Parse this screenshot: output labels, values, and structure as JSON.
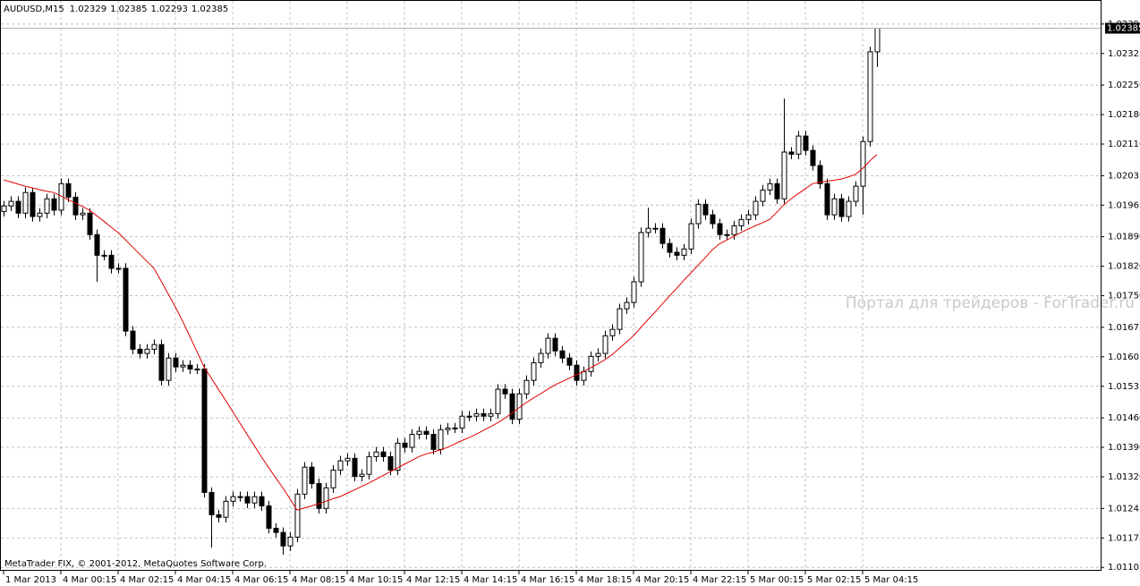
{
  "chart_data": {
    "type": "candlestick",
    "title": "AUDUSD,M15",
    "watermark": "Портал для трейдеров - ForTrader.ru",
    "footer": "MetaTrader FIX, © 2001-2012, MetaQuotes Software Corp.",
    "grid": true,
    "up_color": "#ffffff",
    "down_color": "#000000",
    "categories": [
      "1 Mar 2013",
      null,
      null,
      null,
      null,
      null,
      null,
      null,
      "4 Mar 00:15",
      null,
      null,
      null,
      null,
      null,
      null,
      null,
      "4 Mar 02:15",
      null,
      null,
      null,
      null,
      null,
      null,
      null,
      "4 Mar 04:15",
      null,
      null,
      null,
      null,
      null,
      null,
      null,
      "4 Mar 06:15",
      null,
      null,
      null,
      null,
      null,
      null,
      null,
      "4 Mar 08:15",
      null,
      null,
      null,
      null,
      null,
      null,
      null,
      "4 Mar 10:15",
      null,
      null,
      null,
      null,
      null,
      null,
      null,
      "4 Mar 12:15",
      null,
      null,
      null,
      null,
      null,
      null,
      null,
      "4 Mar 14:15",
      null,
      null,
      null,
      null,
      null,
      null,
      null,
      "4 Mar 16:15",
      null,
      null,
      null,
      null,
      null,
      null,
      null,
      "4 Mar 18:15",
      null,
      null,
      null,
      null,
      null,
      null,
      null,
      "4 Mar 20:15",
      null,
      null,
      null,
      null,
      null,
      null,
      null,
      "4 Mar 22:15",
      null,
      null,
      null,
      null,
      null,
      null,
      null,
      "5 Mar 00:15",
      null,
      null,
      null,
      null,
      null,
      null,
      null,
      "5 Mar 02:15",
      null,
      null,
      null,
      null,
      null,
      null,
      null,
      "5 Mar 04:15",
      null,
      null
    ],
    "open": [
      1.0195,
      1.01963,
      1.01974,
      1.01946,
      1.01995,
      1.01938,
      1.01946,
      1.0198,
      1.01953,
      1.02016,
      1.01984,
      1.01942,
      1.01946,
      1.01895,
      1.01846,
      1.01846,
      1.01815,
      1.01815,
      1.01666,
      1.01623,
      1.01613,
      1.01623,
      1.01634,
      1.01549,
      1.01602,
      1.01581,
      1.01585,
      1.01576,
      1.01576,
      1.01283,
      1.0123,
      1.01224,
      1.01262,
      1.01273,
      1.01273,
      1.01258,
      1.01273,
      1.01251,
      1.01198,
      1.01188,
      1.01156,
      1.01177,
      1.01279,
      1.01343,
      1.01304,
      1.01245,
      1.01294,
      1.01336,
      1.01358,
      1.01364,
      1.01321,
      1.01326,
      1.01368,
      1.01379,
      1.01368,
      1.01336,
      1.014,
      1.0139,
      1.01421,
      1.01428,
      1.01421,
      1.01385,
      1.01432,
      1.01436,
      1.01436,
      1.01464,
      1.01464,
      1.0147,
      1.01464,
      1.0147,
      1.01528,
      1.01517,
      1.01457,
      1.01517,
      1.01549,
      1.01591,
      1.01613,
      1.01649,
      1.01619,
      1.01602,
      1.01585,
      1.01549,
      1.0157,
      1.01606,
      1.01613,
      1.01655,
      1.0167,
      1.01719,
      1.01734,
      1.01783,
      1.019,
      1.0191,
      1.0191,
      1.01874,
      1.01853,
      1.01846,
      1.01861,
      1.01921,
      1.01967,
      1.01942,
      1.01921,
      1.01895,
      1.01895,
      1.01916,
      1.01931,
      1.01942,
      1.01974,
      1.02001,
      1.02016,
      1.0198,
      1.02091,
      1.02086,
      1.02129,
      1.02095,
      1.02059,
      1.02016,
      1.01942,
      1.0198,
      1.01938,
      1.01974,
      1.0201,
      1.02116,
      1.02329
    ],
    "high": [
      1.01975,
      1.01986,
      1.01986,
      1.02007,
      1.02007,
      1.01958,
      1.01992,
      1.01992,
      1.02028,
      1.02028,
      1.01996,
      1.01958,
      1.01958,
      1.01907,
      1.01858,
      1.01858,
      1.01827,
      1.01827,
      1.01678,
      1.01635,
      1.01635,
      1.01646,
      1.01646,
      1.01614,
      1.01614,
      1.01597,
      1.01597,
      1.01588,
      1.01588,
      1.01295,
      1.01242,
      1.01274,
      1.01285,
      1.01285,
      1.01285,
      1.01285,
      1.01285,
      1.01263,
      1.0121,
      1.012,
      1.01189,
      1.01291,
      1.01355,
      1.01355,
      1.01316,
      1.01306,
      1.01348,
      1.0137,
      1.01376,
      1.01376,
      1.01338,
      1.0138,
      1.01391,
      1.01391,
      1.0138,
      1.01412,
      1.01412,
      1.01433,
      1.0144,
      1.0144,
      1.01433,
      1.01444,
      1.01448,
      1.01448,
      1.01476,
      1.01476,
      1.01482,
      1.01482,
      1.01482,
      1.0154,
      1.0154,
      1.01529,
      1.01529,
      1.01561,
      1.01603,
      1.01625,
      1.01661,
      1.01661,
      1.01631,
      1.01614,
      1.01597,
      1.01582,
      1.01618,
      1.01625,
      1.01667,
      1.01682,
      1.01731,
      1.01746,
      1.01795,
      1.01912,
      1.01959,
      1.01922,
      1.01922,
      1.01886,
      1.01865,
      1.01873,
      1.01933,
      1.01979,
      1.01979,
      1.01954,
      1.01933,
      1.01907,
      1.01928,
      1.01943,
      1.01954,
      1.01986,
      1.02013,
      1.02028,
      1.02028,
      1.02218,
      1.02103,
      1.02141,
      1.02141,
      1.02107,
      1.02071,
      1.02028,
      1.01992,
      1.01992,
      1.01986,
      1.02022,
      1.02128,
      1.02341,
      1.02385
    ],
    "low": [
      1.01938,
      1.01951,
      1.01934,
      1.01934,
      1.01926,
      1.01926,
      1.01934,
      1.01941,
      1.01941,
      1.01972,
      1.0193,
      1.0193,
      1.01883,
      1.01783,
      1.01834,
      1.01803,
      1.01803,
      1.01654,
      1.01611,
      1.01601,
      1.01601,
      1.01611,
      1.01537,
      1.01537,
      1.01569,
      1.01569,
      1.01564,
      1.01564,
      1.01271,
      1.01152,
      1.01212,
      1.01212,
      1.0125,
      1.01261,
      1.01246,
      1.01246,
      1.01239,
      1.01186,
      1.01176,
      1.01135,
      1.01144,
      1.01165,
      1.01267,
      1.01292,
      1.01233,
      1.01233,
      1.01282,
      1.01324,
      1.01346,
      1.01309,
      1.01309,
      1.01314,
      1.01356,
      1.01356,
      1.01324,
      1.01324,
      1.01378,
      1.01378,
      1.01409,
      1.01409,
      1.01373,
      1.01373,
      1.0142,
      1.01424,
      1.01424,
      1.01452,
      1.01452,
      1.01452,
      1.01452,
      1.01458,
      1.01505,
      1.01445,
      1.01445,
      1.01505,
      1.01537,
      1.01579,
      1.01601,
      1.01607,
      1.0159,
      1.01573,
      1.01537,
      1.01537,
      1.01558,
      1.01594,
      1.01601,
      1.01643,
      1.01658,
      1.01707,
      1.01722,
      1.01771,
      1.01888,
      1.01898,
      1.01862,
      1.01841,
      1.01834,
      1.01834,
      1.01849,
      1.01909,
      1.0193,
      1.01909,
      1.01883,
      1.01883,
      1.01883,
      1.01904,
      1.01919,
      1.0193,
      1.01962,
      1.01989,
      1.01968,
      1.01968,
      1.02074,
      1.02074,
      1.02083,
      1.02047,
      1.02004,
      1.0193,
      1.0193,
      1.01926,
      1.01926,
      1.01962,
      1.01942,
      1.02104,
      1.02293
    ],
    "close": [
      1.01963,
      1.01974,
      1.01946,
      1.01995,
      1.01938,
      1.01946,
      1.0198,
      1.01953,
      1.02016,
      1.01984,
      1.01942,
      1.01946,
      1.01895,
      1.01846,
      1.01846,
      1.01815,
      1.01815,
      1.01666,
      1.01623,
      1.01613,
      1.01623,
      1.01634,
      1.01549,
      1.01602,
      1.01581,
      1.01585,
      1.01576,
      1.01576,
      1.01283,
      1.0123,
      1.01224,
      1.01262,
      1.01273,
      1.01273,
      1.01258,
      1.01273,
      1.01251,
      1.01198,
      1.01188,
      1.01156,
      1.01177,
      1.01279,
      1.01343,
      1.01304,
      1.01245,
      1.01294,
      1.01336,
      1.01358,
      1.01364,
      1.01321,
      1.01326,
      1.01368,
      1.01379,
      1.01368,
      1.01336,
      1.014,
      1.0139,
      1.01421,
      1.01428,
      1.01421,
      1.01385,
      1.01432,
      1.01436,
      1.01436,
      1.01464,
      1.01464,
      1.0147,
      1.01464,
      1.0147,
      1.01528,
      1.01517,
      1.01457,
      1.01517,
      1.01549,
      1.01591,
      1.01613,
      1.01649,
      1.01619,
      1.01602,
      1.01585,
      1.01549,
      1.0157,
      1.01606,
      1.01613,
      1.01655,
      1.0167,
      1.01719,
      1.01734,
      1.01783,
      1.019,
      1.0191,
      1.0191,
      1.01874,
      1.01853,
      1.01846,
      1.01861,
      1.01921,
      1.01967,
      1.01942,
      1.01921,
      1.01895,
      1.01895,
      1.01916,
      1.01931,
      1.01942,
      1.01974,
      1.02001,
      1.02016,
      1.0198,
      1.02091,
      1.02086,
      1.02129,
      1.02095,
      1.02059,
      1.02016,
      1.01942,
      1.0198,
      1.01938,
      1.01974,
      1.0201,
      1.02116,
      1.02329,
      1.02385
    ],
    "overlay": {
      "type": "line",
      "color": "#e00000",
      "values": [
        1.02025,
        1.0202,
        1.02015,
        1.0201,
        1.02006,
        1.02002,
        1.01998,
        1.01995,
        1.01987,
        1.01978,
        1.0197,
        1.01962,
        1.01953,
        1.0194,
        1.01927,
        1.01913,
        1.019,
        1.01883,
        1.01866,
        1.01849,
        1.01832,
        1.01815,
        1.01785,
        1.01754,
        1.01723,
        1.0169,
        1.01654,
        1.01618,
        1.01581,
        1.01555,
        1.01528,
        1.01502,
        1.01475,
        1.01448,
        1.01421,
        1.01395,
        1.01368,
        1.01343,
        1.01318,
        1.01294,
        1.01268,
        1.01241,
        1.01246,
        1.01251,
        1.01256,
        1.01262,
        1.01268,
        1.01273,
        1.01281,
        1.01289,
        1.01297,
        1.01305,
        1.01314,
        1.01323,
        1.01332,
        1.01341,
        1.0135,
        1.01359,
        1.01368,
        1.01374,
        1.01379,
        1.01384,
        1.0139,
        1.01398,
        1.01406,
        1.01413,
        1.01421,
        1.0143,
        1.01439,
        1.01448,
        1.01459,
        1.01471,
        1.01484,
        1.01496,
        1.01507,
        1.01517,
        1.01528,
        1.01538,
        1.01546,
        1.01554,
        1.01562,
        1.0157,
        1.01579,
        1.01588,
        1.01598,
        1.0161,
        1.01625,
        1.0164,
        1.01655,
        1.01674,
        1.01693,
        1.01711,
        1.0173,
        1.01749,
        1.01767,
        1.01786,
        1.01804,
        1.01822,
        1.0184,
        1.01859,
        1.01873,
        1.01882,
        1.01891,
        1.019,
        1.01908,
        1.01916,
        1.01923,
        1.01931,
        1.01948,
        1.01966,
        1.0198,
        1.01992,
        1.02004,
        1.02016,
        1.02019,
        1.02022,
        1.02024,
        1.02027,
        1.02032,
        1.02038,
        1.02052,
        1.0207,
        1.02085
      ]
    },
    "ylim": [
      1.01097,
      1.02452
    ],
    "yticks": [
      1.02395,
      1.02325,
      {
        "value": 1.0225,
        "label": "1.02250"
      },
      {
        "value": 1.0218,
        "label": "1.02180"
      },
      {
        "value": 1.0211,
        "label": "1.02110"
      },
      1.02035,
      1.01965,
      {
        "value": 1.0189,
        "label": "1.01890"
      },
      {
        "value": 1.0182,
        "label": "1.01820"
      },
      {
        "value": 1.0175,
        "label": "1.01750"
      },
      1.01675,
      1.01605,
      1.01535,
      {
        "value": 1.0146,
        "label": "1.01460"
      },
      {
        "value": 1.0139,
        "label": "1.01390"
      },
      {
        "value": 1.0132,
        "label": "1.01320"
      },
      1.01245,
      1.01175,
      1.01105
    ]
  }
}
